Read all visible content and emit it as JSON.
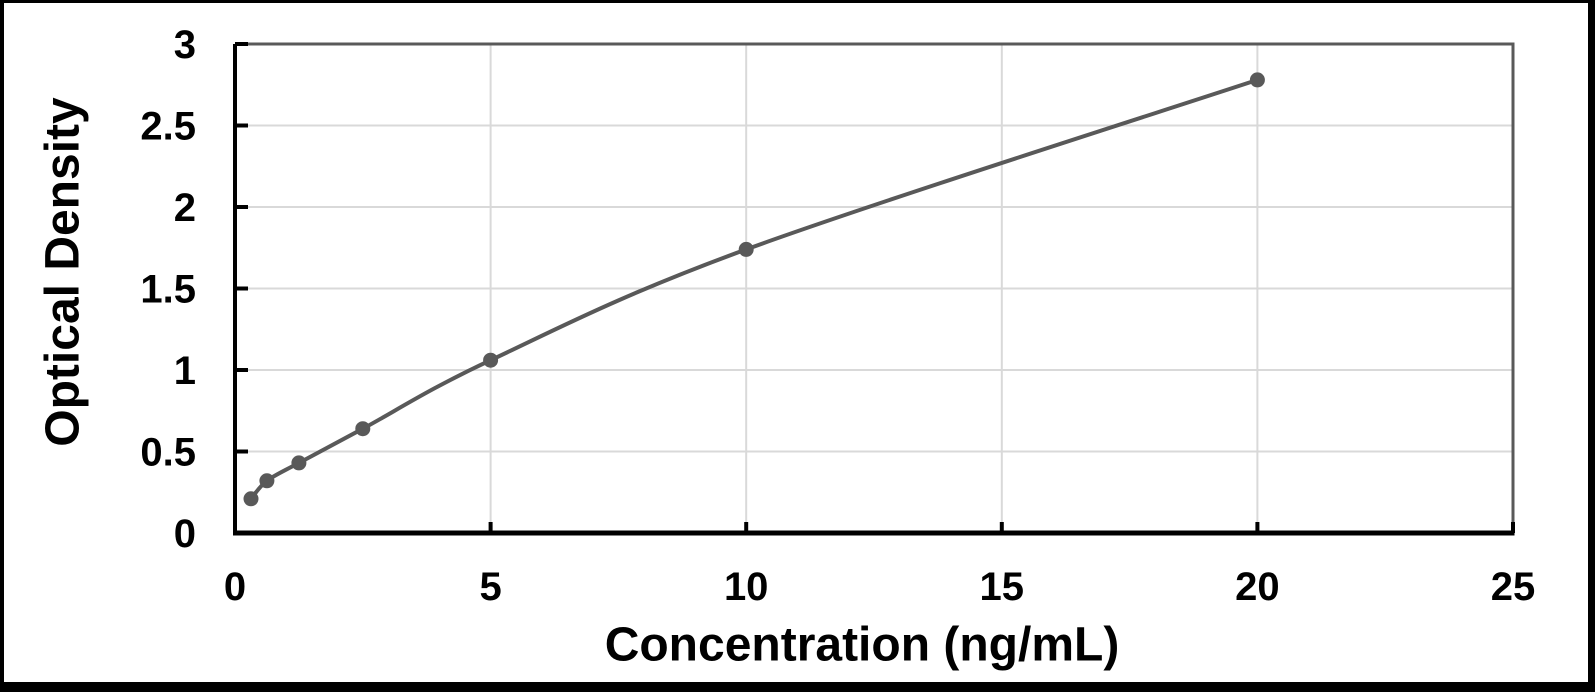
{
  "chart_data": {
    "type": "line",
    "title": "",
    "xlabel": "Concentration (ng/mL)",
    "ylabel": "Optical Density",
    "x": [
      0.313,
      0.625,
      1.25,
      2.5,
      5,
      10,
      20
    ],
    "y": [
      0.21,
      0.32,
      0.43,
      0.64,
      1.06,
      1.74,
      2.78
    ],
    "xlim": [
      0,
      25
    ],
    "ylim": [
      0,
      3
    ],
    "x_ticks": [
      0,
      5,
      10,
      15,
      20,
      25
    ],
    "y_ticks": [
      0,
      0.5,
      1,
      1.5,
      2,
      2.5,
      3
    ],
    "grid": true,
    "legend": false,
    "smooth": true,
    "marker": "circle",
    "series_color": "#595959",
    "gridline_color": "#d9d9d9",
    "axis_color": "#000000",
    "plot_border_color": "#595959",
    "text_color": "#000000",
    "frame_color": "#000000"
  }
}
